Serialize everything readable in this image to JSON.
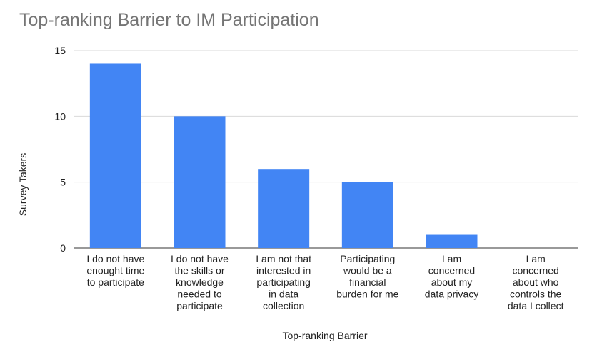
{
  "chart_data": {
    "type": "bar",
    "title": "Top-ranking Barrier to IM Participation",
    "xlabel": "Top-ranking Barrier",
    "ylabel": "Survey Takers",
    "categories": [
      "I do not have enought time to participate",
      "I do not have the skills or knowledge needed to participate",
      "I am not that interested in participating in data collection",
      "Participating would be a financial burden for me",
      "I am concerned about my data privacy",
      "I am concerned about who controls the data I collect"
    ],
    "category_lines": [
      [
        "I do not have",
        "enought time",
        "to participate"
      ],
      [
        "I do not have",
        "the skills or",
        "knowledge",
        "needed to",
        "participate"
      ],
      [
        "I am not that",
        "interested in",
        "participating",
        "in data",
        "collection"
      ],
      [
        "Participating",
        "would be a",
        "financial",
        "burden for me"
      ],
      [
        "I am",
        "concerned",
        "about my",
        "data privacy"
      ],
      [
        "I am",
        "concerned",
        "about who",
        "controls the",
        "data I collect"
      ]
    ],
    "values": [
      14,
      10,
      6,
      5,
      1,
      0
    ],
    "ylim": [
      0,
      15
    ],
    "yticks": [
      0,
      5,
      10,
      15
    ],
    "grid": true,
    "bar_color": "#4285f4",
    "grid_color": "#d9d9d9"
  }
}
